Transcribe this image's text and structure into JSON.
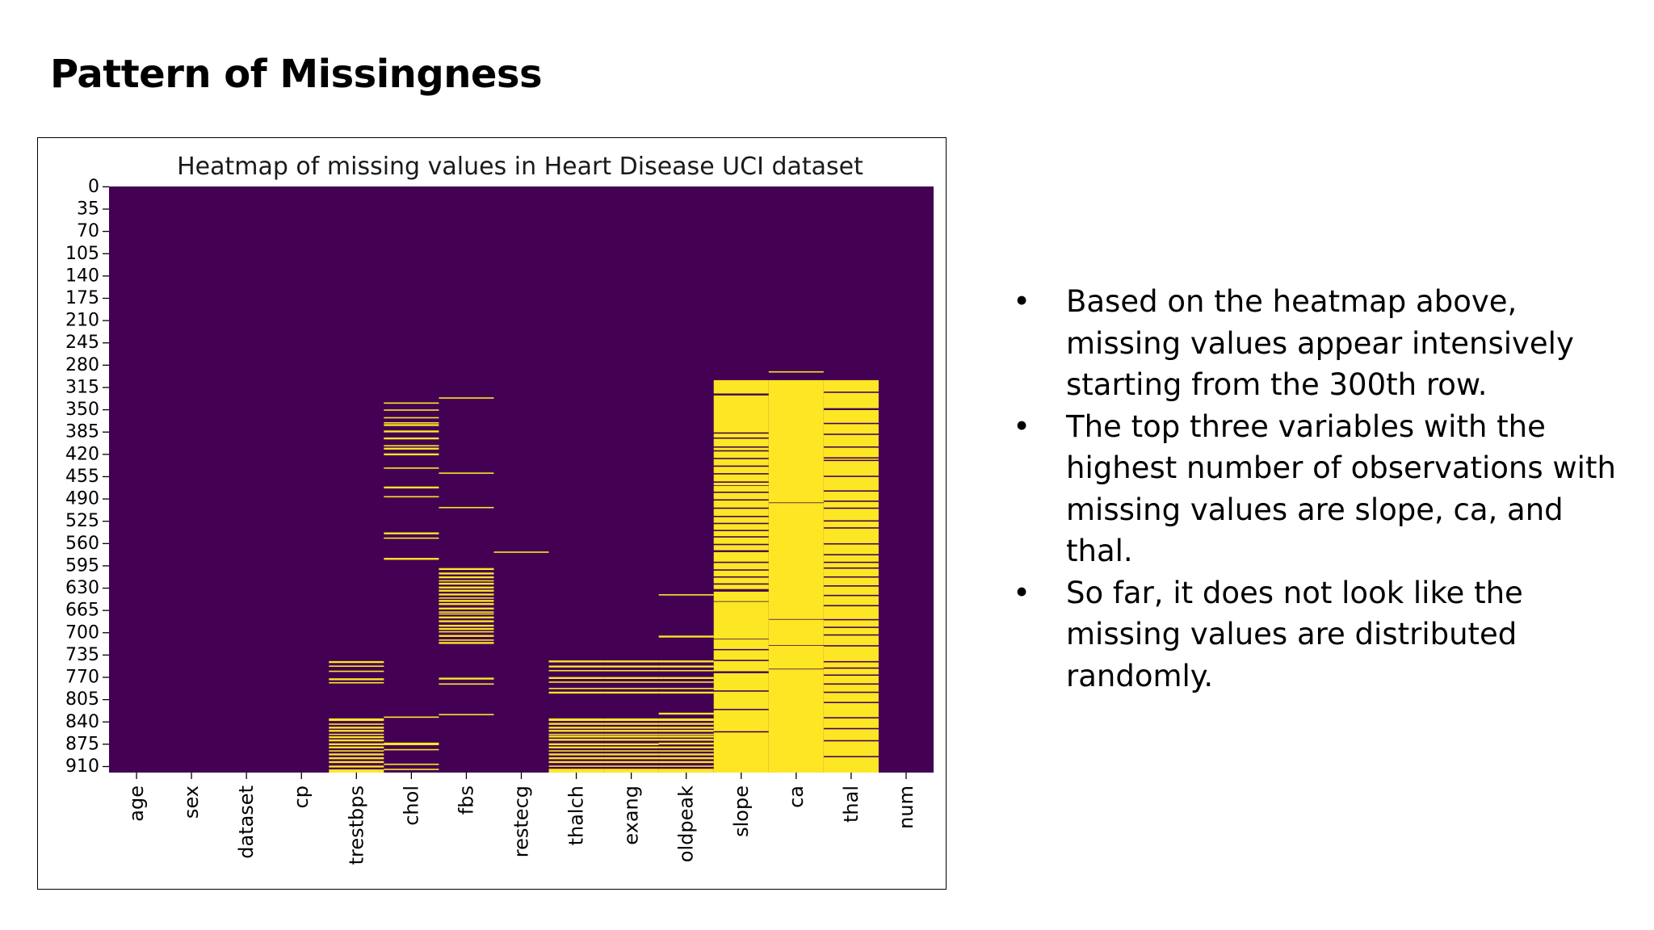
{
  "slide": {
    "title": "Pattern of Missingness",
    "bullets": [
      "Based on the heatmap above, missing values appear intensively starting from the 300th row.",
      "The top three variables with the highest number of observations with missing values are slope, ca, and thal.",
      "So far, it does not look like the missing values are distributed randomly."
    ]
  },
  "colors": {
    "present": "#440154",
    "missing": "#fde725"
  },
  "chart_data": {
    "type": "heatmap",
    "title": "Heatmap of missing values in Heart Disease UCI dataset",
    "xlabel": "",
    "ylabel": "",
    "n_rows": 920,
    "categories": [
      "age",
      "sex",
      "dataset",
      "cp",
      "trestbps",
      "chol",
      "fbs",
      "restecg",
      "thalch",
      "exang",
      "oldpeak",
      "slope",
      "ca",
      "thal",
      "num"
    ],
    "y_ticks": [
      0,
      35,
      70,
      105,
      140,
      175,
      210,
      245,
      280,
      315,
      350,
      385,
      420,
      455,
      490,
      525,
      560,
      595,
      630,
      665,
      700,
      735,
      770,
      805,
      840,
      875,
      910
    ],
    "cell_values": {
      "present": 0,
      "missing": 1
    },
    "missing_rows": {
      "age": [],
      "sex": [],
      "dataset": [],
      "cp": [],
      "trestbps": [
        [
          745,
          747
        ],
        [
          752,
          753
        ],
        [
          760,
          761
        ],
        [
          772,
          774
        ],
        [
          778,
          779
        ],
        [
          835,
          838
        ],
        [
          843,
          844
        ],
        [
          848,
          850
        ],
        [
          853,
          855
        ],
        [
          859,
          860
        ],
        [
          863,
          865
        ],
        [
          868,
          870
        ],
        [
          874,
          876
        ],
        [
          879,
          881
        ],
        [
          885,
          886
        ],
        [
          890,
          892
        ],
        [
          896,
          898
        ],
        [
          902,
          904
        ],
        [
          909,
          911
        ],
        [
          915,
          919
        ]
      ],
      "chol": [
        [
          339,
          340
        ],
        [
          350,
          351
        ],
        [
          362,
          363
        ],
        [
          370,
          371
        ],
        [
          373,
          375
        ],
        [
          383,
          385
        ],
        [
          394,
          396
        ],
        [
          406,
          407
        ],
        [
          410,
          412
        ],
        [
          419,
          421
        ],
        [
          441,
          442
        ],
        [
          471,
          473
        ],
        [
          486,
          487
        ],
        [
          543,
          545
        ],
        [
          551,
          552
        ],
        [
          583,
          585
        ],
        [
          832,
          833
        ],
        [
          873,
          876
        ],
        [
          883,
          884
        ],
        [
          906,
          907
        ],
        [
          914,
          915
        ]
      ],
      "fbs": [
        [
          331,
          332
        ],
        [
          449,
          450
        ],
        [
          503,
          504
        ],
        [
          599,
          601
        ],
        [
          606,
          608
        ],
        [
          612,
          614
        ],
        [
          618,
          619
        ],
        [
          622,
          624
        ],
        [
          628,
          630
        ],
        [
          633,
          635
        ],
        [
          639,
          641
        ],
        [
          645,
          646
        ],
        [
          649,
          651
        ],
        [
          654,
          656
        ],
        [
          661,
          663
        ],
        [
          667,
          668
        ],
        [
          670,
          671
        ],
        [
          675,
          677
        ],
        [
          681,
          683
        ],
        [
          688,
          690
        ],
        [
          693,
          695
        ],
        [
          698,
          699
        ],
        [
          704,
          706
        ],
        [
          711,
          712
        ],
        [
          715,
          717
        ],
        [
          771,
          773
        ],
        [
          780,
          781
        ],
        [
          828,
          829
        ]
      ],
      "restecg": [
        [
          573,
          574
        ]
      ],
      "thalch": [
        [
          744,
          746
        ],
        [
          752,
          754
        ],
        [
          759,
          760
        ],
        [
          770,
          772
        ],
        [
          777,
          778
        ],
        [
          787,
          788
        ],
        [
          793,
          795
        ],
        [
          835,
          838
        ],
        [
          842,
          844
        ],
        [
          848,
          850
        ],
        [
          853,
          855
        ],
        [
          859,
          860
        ],
        [
          862,
          864
        ],
        [
          867,
          869
        ],
        [
          874,
          876
        ],
        [
          879,
          881
        ],
        [
          885,
          886
        ],
        [
          890,
          892
        ],
        [
          896,
          898
        ],
        [
          902,
          904
        ],
        [
          909,
          910
        ],
        [
          914,
          919
        ]
      ],
      "exang": [
        [
          744,
          746
        ],
        [
          752,
          754
        ],
        [
          759,
          760
        ],
        [
          770,
          772
        ],
        [
          777,
          778
        ],
        [
          787,
          788
        ],
        [
          793,
          795
        ],
        [
          835,
          838
        ],
        [
          842,
          844
        ],
        [
          848,
          850
        ],
        [
          853,
          855
        ],
        [
          859,
          860
        ],
        [
          862,
          864
        ],
        [
          867,
          869
        ],
        [
          874,
          876
        ],
        [
          879,
          881
        ],
        [
          885,
          886
        ],
        [
          890,
          892
        ],
        [
          896,
          898
        ],
        [
          902,
          904
        ],
        [
          909,
          910
        ],
        [
          914,
          919
        ]
      ],
      "oldpeak": [
        [
          640,
          641
        ],
        [
          705,
          707
        ],
        [
          744,
          746
        ],
        [
          752,
          754
        ],
        [
          759,
          760
        ],
        [
          770,
          772
        ],
        [
          777,
          778
        ],
        [
          787,
          788
        ],
        [
          793,
          795
        ],
        [
          826,
          828
        ],
        [
          835,
          838
        ],
        [
          842,
          844
        ],
        [
          848,
          850
        ],
        [
          853,
          855
        ],
        [
          859,
          860
        ],
        [
          862,
          864
        ],
        [
          867,
          869
        ],
        [
          873,
          875
        ],
        [
          879,
          881
        ],
        [
          885,
          886
        ],
        [
          890,
          892
        ],
        [
          896,
          898
        ],
        [
          902,
          904
        ],
        [
          909,
          910
        ],
        [
          914,
          919
        ]
      ],
      "slope": [
        [
          304,
          324
        ],
        [
          328,
          385
        ],
        [
          388,
          393
        ],
        [
          396,
          407
        ],
        [
          410,
          413
        ],
        [
          416,
          425
        ],
        [
          428,
          437
        ],
        [
          440,
          449
        ],
        [
          452,
          462
        ],
        [
          465,
          468
        ],
        [
          470,
          478
        ],
        [
          481,
          490
        ],
        [
          493,
          503
        ],
        [
          506,
          516
        ],
        [
          519,
          527
        ],
        [
          530,
          538
        ],
        [
          541,
          548
        ],
        [
          551,
          560
        ],
        [
          563,
          570
        ],
        [
          574,
          588
        ],
        [
          591,
          600
        ],
        [
          603,
          611
        ],
        [
          614,
          622
        ],
        [
          625,
          631
        ],
        [
          636,
          650
        ],
        [
          652,
          709
        ],
        [
          711,
          725
        ],
        [
          728,
          742
        ],
        [
          745,
          760
        ],
        [
          764,
          790
        ],
        [
          793,
          819
        ],
        [
          822,
          854
        ],
        [
          857,
          919
        ]
      ],
      "ca": [
        [
          290,
          291
        ],
        [
          304,
          495
        ],
        [
          497,
          678
        ],
        [
          680,
          719
        ],
        [
          721,
          756
        ],
        [
          758,
          919
        ]
      ],
      "thal": [
        [
          304,
          321
        ],
        [
          324,
          347
        ],
        [
          351,
          370
        ],
        [
          373,
          387
        ],
        [
          390,
          407
        ],
        [
          410,
          424
        ],
        [
          427,
          428
        ],
        [
          431,
          453
        ],
        [
          456,
          476
        ],
        [
          479,
          492
        ],
        [
          495,
          503
        ],
        [
          506,
          523
        ],
        [
          526,
          534
        ],
        [
          537,
          559
        ],
        [
          562,
          576
        ],
        [
          579,
          588
        ],
        [
          591,
          597
        ],
        [
          600,
          611
        ],
        [
          614,
          625
        ],
        [
          628,
          640
        ],
        [
          643,
          656
        ],
        [
          659,
          678
        ],
        [
          681,
          690
        ],
        [
          693,
          702
        ],
        [
          705,
          719
        ],
        [
          722,
          744
        ],
        [
          747,
          754
        ],
        [
          757,
          765
        ],
        [
          768,
          779
        ],
        [
          782,
          792
        ],
        [
          795,
          808
        ],
        [
          811,
          832
        ],
        [
          835,
          849
        ],
        [
          852,
          868
        ],
        [
          871,
          893
        ],
        [
          896,
          919
        ]
      ],
      "num": []
    }
  }
}
